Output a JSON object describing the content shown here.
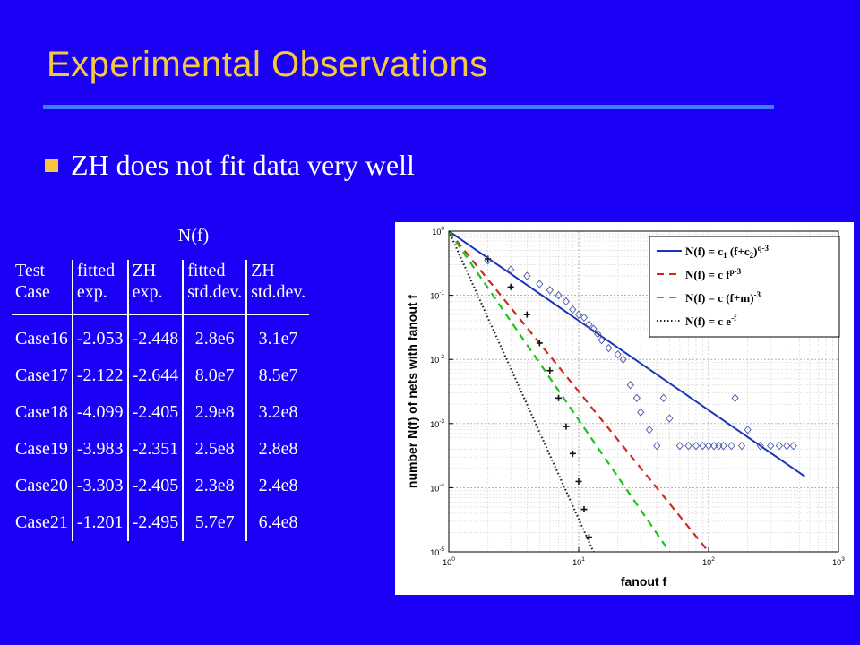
{
  "slide": {
    "title": "Experimental Observations",
    "bullet": "ZH does not fit data very well"
  },
  "table": {
    "caption": "N(f)",
    "headers": [
      [
        "Test",
        "Case"
      ],
      [
        "fitted",
        "exp."
      ],
      [
        "ZH",
        "exp."
      ],
      [
        "fitted",
        "std.dev."
      ],
      [
        "ZH",
        "std.dev."
      ]
    ],
    "rows": [
      [
        "Case16",
        "-2.053",
        "-2.448",
        "2.8e6",
        "3.1e7"
      ],
      [
        "Case17",
        "-2.122",
        "-2.644",
        "8.0e7",
        "8.5e7"
      ],
      [
        "Case18",
        "-4.099",
        "-2.405",
        "2.9e8",
        "3.2e8"
      ],
      [
        "Case19",
        "-3.983",
        "-2.351",
        "2.5e8",
        "2.8e8"
      ],
      [
        "Case20",
        "-3.303",
        "-2.405",
        "2.3e8",
        "2.4e8"
      ],
      [
        "Case21",
        "-1.201",
        "-2.495",
        "5.7e7",
        "6.4e8"
      ]
    ]
  },
  "chart_data": {
    "type": "line",
    "xlabel": "fanout f",
    "ylabel": "number N(f) of nets with fanout f",
    "x_scale": "log",
    "y_scale": "log",
    "xlim": [
      1,
      1000
    ],
    "ylim": [
      1e-05,
      1
    ],
    "grid": true,
    "legend_position": "top-right",
    "x_ticks": [
      {
        "value": 1,
        "base": "10",
        "exp": "0"
      },
      {
        "value": 10,
        "base": "10",
        "exp": "1"
      },
      {
        "value": 100,
        "base": "10",
        "exp": "2"
      },
      {
        "value": 1000,
        "base": "10",
        "exp": "3"
      }
    ],
    "y_ticks": [
      {
        "value": 1e-05,
        "base": "10",
        "exp": "-5"
      },
      {
        "value": 0.0001,
        "base": "10",
        "exp": "-4"
      },
      {
        "value": 0.001,
        "base": "10",
        "exp": "-3"
      },
      {
        "value": 0.01,
        "base": "10",
        "exp": "-2"
      },
      {
        "value": 0.1,
        "base": "10",
        "exp": "-1"
      },
      {
        "value": 1,
        "base": "10",
        "exp": "0"
      }
    ],
    "series": [
      {
        "kind": "line",
        "legend": [
          "N(f) = c",
          "1",
          " (f+c",
          "2",
          ")",
          "q-3",
          ""
        ],
        "color": "#1a34b8",
        "dash": "none",
        "x": [
          1,
          550
        ],
        "y": [
          1,
          0.00015
        ]
      },
      {
        "kind": "line",
        "legend": [
          "N(f) = c f",
          "p-3",
          ""
        ],
        "color": "#d02a1e",
        "dash": "8,6",
        "x": [
          1,
          100
        ],
        "y": [
          1,
          1e-05
        ]
      },
      {
        "kind": "line",
        "legend": [
          "N(f) = c (f+m)",
          "-3",
          ""
        ],
        "color": "#19c419",
        "dash": "8,6",
        "x": [
          1,
          50
        ],
        "y": [
          1,
          1e-05
        ]
      },
      {
        "kind": "line",
        "legend": [
          "N(f) = c e",
          "-f",
          ""
        ],
        "color": "#222222",
        "dash": "1.5,2.5",
        "x": [
          1,
          13
        ],
        "y": [
          1,
          1e-05
        ]
      },
      {
        "kind": "scatter-plus",
        "color": "#111111",
        "x": [
          2,
          3,
          4,
          5,
          6,
          7,
          8,
          9,
          10,
          11,
          12
        ],
        "y": [
          0.37,
          0.135,
          0.05,
          0.018,
          0.0067,
          0.0025,
          0.0009,
          0.00034,
          0.000125,
          4.6e-05,
          1.7e-05
        ]
      },
      {
        "kind": "scatter-diamond",
        "color": "#4a55a8",
        "x": [
          2,
          3,
          4,
          5,
          6,
          7,
          8,
          9,
          10,
          11,
          12,
          13,
          14,
          15,
          17,
          20,
          22,
          25,
          28,
          30,
          35,
          40,
          45,
          50,
          60,
          70,
          80,
          90,
          100,
          110,
          120,
          130,
          150,
          160,
          180,
          200,
          250,
          300,
          350,
          400,
          450
        ],
        "y": [
          0.35,
          0.25,
          0.2,
          0.15,
          0.12,
          0.1,
          0.08,
          0.06,
          0.05,
          0.045,
          0.035,
          0.03,
          0.025,
          0.02,
          0.015,
          0.012,
          0.01,
          0.004,
          0.0025,
          0.0015,
          0.0008,
          0.00045,
          0.0025,
          0.0012,
          0.00045,
          0.00045,
          0.00045,
          0.00045,
          0.00045,
          0.00045,
          0.00045,
          0.00045,
          0.00045,
          0.0025,
          0.00045,
          0.0008,
          0.00045,
          0.00045,
          0.00045,
          0.00045,
          0.00045
        ]
      }
    ]
  }
}
